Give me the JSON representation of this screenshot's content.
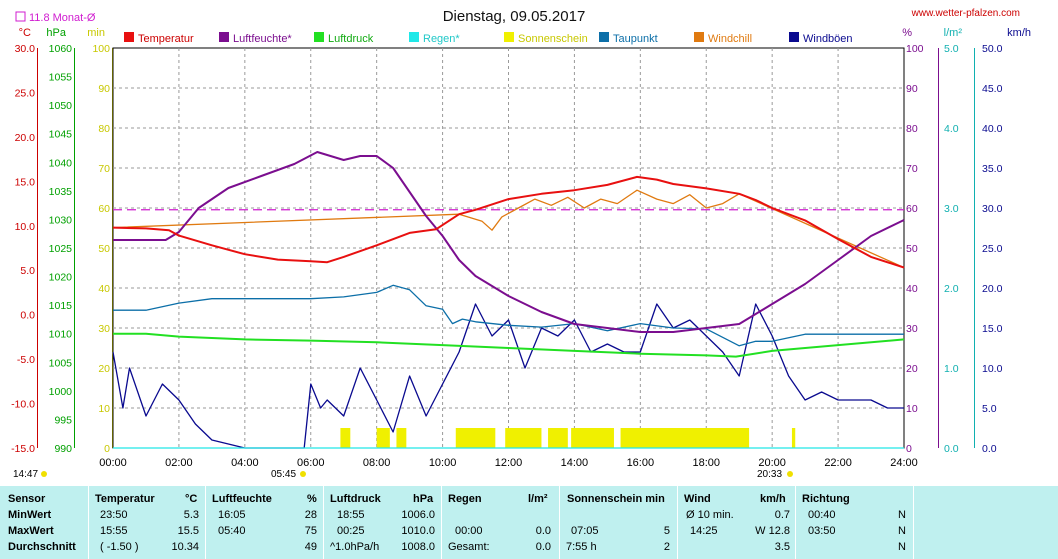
{
  "title": "Dienstag, 09.05.2017",
  "website": "www.wetter-pfalzen.com",
  "monthly_avg_label": "11.8 Monat-Ø",
  "colors": {
    "temperature": "#e81010",
    "humidity": "#7b0e8f",
    "pressure": "#22e022",
    "rain": "#20e8e8",
    "sunshine": "#f0f000",
    "dewpoint": "#0c6fa8",
    "windchill": "#e07a10",
    "gust": "#0a0a8f",
    "month_avg": "#d01cd0",
    "temp_axis": "#cc0000",
    "hpa_axis": "#00a000",
    "min_axis": "#c8c800",
    "pct_axis": "#7b0e8f",
    "rain_axis": "#10b0b0",
    "wind_axis": "#0a0a8f",
    "stats_bg": "#bff0ef"
  },
  "legend": [
    {
      "key": "temperature",
      "label": "Temperatur",
      "color": "#e81010",
      "text_color": "#cc0000"
    },
    {
      "key": "humidity",
      "label": "Luftfeuchte*",
      "color": "#7b0e8f",
      "text_color": "#7b0e8f"
    },
    {
      "key": "pressure",
      "label": "Luftdruck",
      "color": "#22e022",
      "text_color": "#11aa11"
    },
    {
      "key": "rain",
      "label": "Regen*",
      "color": "#20e8e8",
      "text_color": "#20c8c8"
    },
    {
      "key": "sunshine",
      "label": "Sonnenschein",
      "color": "#f0f000",
      "text_color": "#c8c800"
    },
    {
      "key": "dewpoint",
      "label": "Taupunkt",
      "color": "#0c6fa8",
      "text_color": "#0c6fa8"
    },
    {
      "key": "windchill",
      "label": "Windchill",
      "color": "#e07a10",
      "text_color": "#e07a10"
    },
    {
      "key": "gust",
      "label": "Windböen",
      "color": "#0a0a8f",
      "text_color": "#0a0a8f"
    }
  ],
  "axes": {
    "temp": {
      "unit": "°C",
      "ticks": [
        "30.0",
        "25.0",
        "20.0",
        "15.0",
        "10.0",
        "5.0",
        "0.0",
        "-5.0",
        "-10.0",
        "-15.0"
      ]
    },
    "hpa": {
      "unit": "hPa",
      "ticks": [
        "1060",
        "1055",
        "1050",
        "1045",
        "1040",
        "1035",
        "1030",
        "1025",
        "1020",
        "1015",
        "1010",
        "1005",
        "1000",
        "995",
        "990"
      ]
    },
    "min": {
      "unit": "min",
      "ticks": [
        "100",
        "90",
        "80",
        "70",
        "60",
        "50",
        "40",
        "30",
        "20",
        "10",
        "0"
      ]
    },
    "pct": {
      "unit": "%",
      "ticks": [
        "100",
        "90",
        "80",
        "70",
        "60",
        "50",
        "40",
        "30",
        "20",
        "10",
        "0"
      ]
    },
    "rain": {
      "unit": "l/m²",
      "ticks": [
        "5.0",
        "4.0",
        "3.0",
        "2.0",
        "1.0",
        "0.0"
      ]
    },
    "wind": {
      "unit": "km/h",
      "ticks": [
        "50.0",
        "45.0",
        "40.0",
        "35.0",
        "30.0",
        "25.0",
        "20.0",
        "15.0",
        "10.0",
        "5.0",
        "0.0"
      ]
    },
    "time": {
      "ticks": [
        "00:00",
        "02:00",
        "04:00",
        "06:00",
        "08:00",
        "10:00",
        "12:00",
        "14:00",
        "16:00",
        "18:00",
        "20:00",
        "22:00",
        "24:00"
      ]
    }
  },
  "sun": {
    "rise": "05:45",
    "set": "20:33",
    "moonrise": "14:47"
  },
  "chart_data": {
    "type": "line",
    "title": "Dienstag, 09.05.2017",
    "x_unit": "hours",
    "xlim": [
      0,
      24
    ],
    "month_avg_temp": 11.8,
    "series": [
      {
        "name": "Temperatur",
        "axis": "temp",
        "ylim": [
          -15,
          30
        ],
        "points": [
          [
            0,
            9.8
          ],
          [
            1,
            9.7
          ],
          [
            1.7,
            9.5
          ],
          [
            2,
            8.9
          ],
          [
            3,
            7.8
          ],
          [
            4,
            6.8
          ],
          [
            5,
            6.2
          ],
          [
            6,
            6.0
          ],
          [
            6.5,
            5.9
          ],
          [
            7,
            6.5
          ],
          [
            8,
            7.8
          ],
          [
            9,
            9.2
          ],
          [
            9.8,
            9.6
          ],
          [
            10.5,
            11.3
          ],
          [
            11,
            11.8
          ],
          [
            12,
            13.0
          ],
          [
            13,
            13.6
          ],
          [
            14,
            14.0
          ],
          [
            15,
            14.6
          ],
          [
            15.9,
            15.5
          ],
          [
            16.5,
            15.2
          ],
          [
            17,
            14.7
          ],
          [
            18,
            14.2
          ],
          [
            19,
            13.6
          ],
          [
            19.5,
            12.9
          ],
          [
            20,
            12.0
          ],
          [
            21,
            10.6
          ],
          [
            22,
            8.5
          ],
          [
            23,
            6.5
          ],
          [
            24,
            5.3
          ]
        ]
      },
      {
        "name": "Luftfeuchte*",
        "axis": "pct",
        "ylim": [
          0,
          100
        ],
        "points": [
          [
            0,
            52
          ],
          [
            1,
            52
          ],
          [
            1.6,
            52
          ],
          [
            2,
            54
          ],
          [
            2.6,
            60
          ],
          [
            3.5,
            65
          ],
          [
            4.5,
            68
          ],
          [
            5.5,
            71
          ],
          [
            6.2,
            74
          ],
          [
            7,
            72
          ],
          [
            7.5,
            73
          ],
          [
            8,
            73
          ],
          [
            8.5,
            70
          ],
          [
            9,
            64
          ],
          [
            9.5,
            58
          ],
          [
            10,
            53
          ],
          [
            10.5,
            47
          ],
          [
            11,
            43
          ],
          [
            12,
            38
          ],
          [
            13,
            34
          ],
          [
            14,
            31
          ],
          [
            15,
            30
          ],
          [
            16,
            29
          ],
          [
            17,
            29
          ],
          [
            18,
            30
          ],
          [
            19,
            31
          ],
          [
            20,
            36
          ],
          [
            21,
            41
          ],
          [
            22,
            47
          ],
          [
            23,
            53
          ],
          [
            24,
            57
          ]
        ]
      },
      {
        "name": "Luftdruck",
        "axis": "hpa",
        "ylim": [
          990,
          1060
        ],
        "points": [
          [
            0,
            1010
          ],
          [
            1,
            1010
          ],
          [
            2,
            1009.5
          ],
          [
            4,
            1009
          ],
          [
            6,
            1008.8
          ],
          [
            8,
            1008.5
          ],
          [
            10,
            1008
          ],
          [
            12,
            1007.5
          ],
          [
            14,
            1007
          ],
          [
            16,
            1006.5
          ],
          [
            18,
            1006.2
          ],
          [
            18.9,
            1006
          ],
          [
            20,
            1007
          ],
          [
            22,
            1008
          ],
          [
            24,
            1009
          ]
        ]
      },
      {
        "name": "Regen*",
        "axis": "rain",
        "ylim": [
          0,
          5
        ],
        "points": [
          [
            0,
            0
          ],
          [
            24,
            0
          ]
        ]
      },
      {
        "name": "Taupunkt",
        "axis": "temp",
        "ylim": [
          -15,
          30
        ],
        "points": [
          [
            0,
            0.5
          ],
          [
            1,
            0.5
          ],
          [
            2,
            1.3
          ],
          [
            3,
            1.8
          ],
          [
            4,
            1.8
          ],
          [
            5,
            1.8
          ],
          [
            6,
            1.8
          ],
          [
            7,
            2.0
          ],
          [
            8,
            2.5
          ],
          [
            8.5,
            3.3
          ],
          [
            9,
            2.8
          ],
          [
            9.5,
            1.0
          ],
          [
            10,
            0.6
          ],
          [
            10.3,
            -1.0
          ],
          [
            10.6,
            -0.5
          ],
          [
            11,
            -0.8
          ],
          [
            12,
            -1.2
          ],
          [
            13,
            -1.4
          ],
          [
            14,
            -1.0
          ],
          [
            15,
            -1.8
          ],
          [
            16,
            -1.0
          ],
          [
            17,
            -1.5
          ],
          [
            18,
            -1.6
          ],
          [
            19,
            -3.5
          ],
          [
            19.5,
            -3.0
          ],
          [
            20,
            -3.0
          ],
          [
            21,
            -2.2
          ],
          [
            22,
            -2.2
          ],
          [
            23,
            -2.2
          ],
          [
            24,
            -2.2
          ]
        ]
      },
      {
        "name": "Windchill",
        "axis": "temp",
        "ylim": [
          -15,
          30
        ],
        "points": [
          [
            0,
            9.8
          ],
          [
            10.5,
            11.3
          ],
          [
            11.2,
            10.5
          ],
          [
            11.5,
            9.5
          ],
          [
            11.8,
            11.0
          ],
          [
            12.3,
            12.0
          ],
          [
            12.8,
            13.0
          ],
          [
            13.3,
            12.3
          ],
          [
            13.8,
            13.2
          ],
          [
            14.3,
            12.0
          ],
          [
            14.8,
            13.0
          ],
          [
            15.3,
            12.5
          ],
          [
            15.9,
            14.0
          ],
          [
            16.5,
            13.0
          ],
          [
            17,
            12.5
          ],
          [
            17.5,
            13.5
          ],
          [
            18,
            12.0
          ],
          [
            18.5,
            12.5
          ],
          [
            19,
            13.6
          ],
          [
            24,
            5.3
          ]
        ]
      },
      {
        "name": "Windböen",
        "axis": "wind",
        "ylim": [
          0,
          50
        ],
        "points": [
          [
            0,
            12
          ],
          [
            0.3,
            5
          ],
          [
            0.5,
            10
          ],
          [
            1,
            4
          ],
          [
            1.5,
            8
          ],
          [
            2,
            6
          ],
          [
            2.5,
            3
          ],
          [
            3,
            1
          ],
          [
            4,
            0
          ],
          [
            5,
            0
          ],
          [
            5.8,
            0
          ],
          [
            6,
            8
          ],
          [
            6.3,
            5
          ],
          [
            6.5,
            6
          ],
          [
            7,
            4
          ],
          [
            7.5,
            10
          ],
          [
            8,
            6
          ],
          [
            8.5,
            2
          ],
          [
            9,
            9
          ],
          [
            9.5,
            4
          ],
          [
            10,
            8
          ],
          [
            10.5,
            12
          ],
          [
            11,
            18
          ],
          [
            11.5,
            14
          ],
          [
            12,
            16
          ],
          [
            12.5,
            10
          ],
          [
            13,
            15
          ],
          [
            13.5,
            14
          ],
          [
            14,
            16
          ],
          [
            14.5,
            12
          ],
          [
            15,
            13
          ],
          [
            15.5,
            12
          ],
          [
            16,
            12
          ],
          [
            16.5,
            18
          ],
          [
            17,
            15
          ],
          [
            17.5,
            16
          ],
          [
            18,
            14
          ],
          [
            18.5,
            12
          ],
          [
            19,
            9
          ],
          [
            19.5,
            18
          ],
          [
            20,
            14
          ],
          [
            20.5,
            9
          ],
          [
            21,
            6
          ],
          [
            21.5,
            7
          ],
          [
            22,
            6
          ],
          [
            22.5,
            6
          ],
          [
            23,
            6
          ],
          [
            23.5,
            5
          ],
          [
            24,
            5
          ]
        ]
      },
      {
        "name": "Sonnenschein",
        "axis": "min",
        "ylim": [
          0,
          100
        ],
        "intervals": [
          [
            6.9,
            7.2
          ],
          [
            8.0,
            8.4
          ],
          [
            8.6,
            8.9
          ],
          [
            10.4,
            11.6
          ],
          [
            11.9,
            13.0
          ],
          [
            13.2,
            13.8
          ],
          [
            13.9,
            15.2
          ],
          [
            15.4,
            19.3
          ],
          [
            20.6,
            20.7
          ]
        ]
      }
    ]
  },
  "stats": {
    "headers": {
      "sensor": "Sensor",
      "temp": "Temperatur",
      "temp_unit": "°C",
      "hum": "Luftfeuchte",
      "hum_unit": "%",
      "press": "Luftdruck",
      "press_unit": "hPa",
      "rain": "Regen",
      "rain_unit": "l/m²",
      "sun": "Sonnenschein min",
      "wind": "Wind",
      "wind_unit": "km/h",
      "dir": "Richtung"
    },
    "rows": [
      {
        "label": "MinWert",
        "temp_time": "23:50",
        "temp_val": "5.3",
        "hum_time": "16:05",
        "hum_val": "28",
        "press_time": "18:55",
        "press_val": "1006.0",
        "rain_time": "",
        "rain_val": "",
        "sun_time": "",
        "sun_val": "",
        "wind_time": "Ø 10 min.",
        "wind_val": "0.7",
        "dir_time": "00:40",
        "dir_val": "N"
      },
      {
        "label": "MaxWert",
        "temp_time": "15:55",
        "temp_val": "15.5",
        "hum_time": "05:40",
        "hum_val": "75",
        "press_time": "00:25",
        "press_val": "1010.0",
        "rain_time": "00:00",
        "rain_val": "0.0",
        "sun_time": "07:05",
        "sun_val": "5",
        "wind_time": "14:25",
        "wind_val": "W 12.8",
        "dir_time": "03:50",
        "dir_val": "N"
      },
      {
        "label": "Durchschnitt",
        "temp_time": "( -1.50 )",
        "temp_val": "10.34",
        "hum_time": "",
        "hum_val": "49",
        "press_time": "^1.0hPa/h",
        "press_val": "1008.0",
        "rain_time": "Gesamt:",
        "rain_val": "0.0",
        "sun_time": "7:55 h",
        "sun_val": "2",
        "wind_time": "",
        "wind_val": "3.5",
        "dir_time": "",
        "dir_val": "N"
      }
    ]
  }
}
